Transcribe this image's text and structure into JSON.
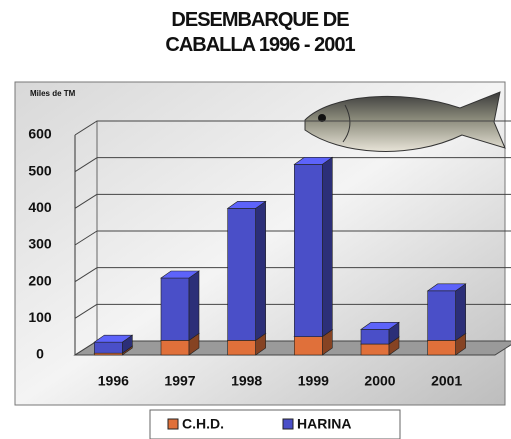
{
  "chart_data": {
    "type": "bar3d_stacked",
    "title": "DESEMBARQUE DE CABALLA 1996 - 2001",
    "y_axis_label": "Miles de TM",
    "categories": [
      "1996",
      "1997",
      "1998",
      "1999",
      "2000",
      "2001"
    ],
    "series": [
      {
        "name": "C.H.D.",
        "color": "#e0703a",
        "values": [
          5,
          40,
          40,
          50,
          30,
          40
        ]
      },
      {
        "name": "HARINA",
        "color": "#4a4fc8",
        "values": [
          30,
          170,
          360,
          470,
          40,
          135
        ]
      }
    ],
    "ylim": [
      0,
      600
    ],
    "yticks": [
      0,
      100,
      200,
      300,
      400,
      500,
      600
    ],
    "grid": true,
    "legend": "bottom"
  }
}
